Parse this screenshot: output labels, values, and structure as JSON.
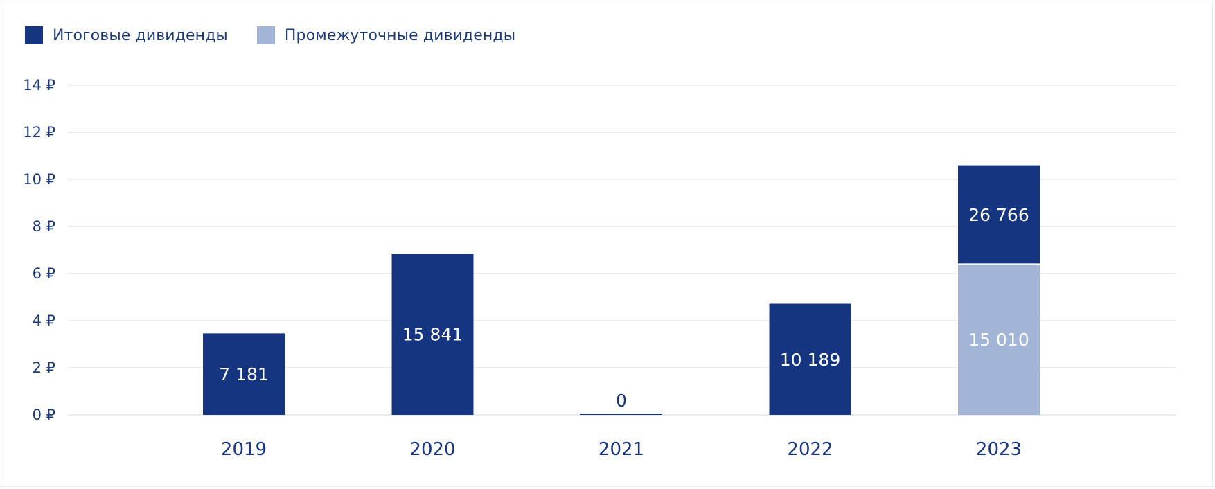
{
  "legend": {
    "items": [
      {
        "label": "Итоговые дивиденды",
        "color": "#163580"
      },
      {
        "label": "Промежуточные дивиденды",
        "color": "#a2b5d6"
      }
    ]
  },
  "colors": {
    "final": "#163580",
    "interim": "#a2b5d6",
    "grid": "#e3e6ee",
    "axis_text": "#1d3a78",
    "label_on_dark": "#ffffff",
    "label_on_light": "#ffffff",
    "label_zero": "#173580"
  },
  "chart_data": {
    "type": "bar",
    "stacked": true,
    "categories": [
      "2019",
      "2020",
      "2021",
      "2022",
      "2023"
    ],
    "y_ticks": [
      {
        "value": 0,
        "label": "0 ₽"
      },
      {
        "value": 2,
        "label": "2 ₽"
      },
      {
        "value": 4,
        "label": "4 ₽"
      },
      {
        "value": 6,
        "label": "6 ₽"
      },
      {
        "value": 8,
        "label": "8 ₽"
      },
      {
        "value": 10,
        "label": "10 ₽"
      },
      {
        "value": 12,
        "label": "12 ₽"
      },
      {
        "value": 14,
        "label": "14 ₽"
      }
    ],
    "ylim": [
      0,
      14
    ],
    "grid": true,
    "legend_position": "top-left",
    "series": [
      {
        "name": "Промежуточные дивиденды",
        "key": "interim",
        "values": [
          0,
          0,
          0,
          0,
          6.4
        ],
        "labels": [
          "",
          "",
          "",
          "",
          "15 010"
        ]
      },
      {
        "name": "Итоговые дивиденды",
        "key": "final",
        "values": [
          3.46,
          6.84,
          0,
          4.72,
          4.2
        ],
        "labels": [
          "7 181",
          "15 841",
          "0",
          "10 189",
          "26 766"
        ]
      }
    ]
  }
}
